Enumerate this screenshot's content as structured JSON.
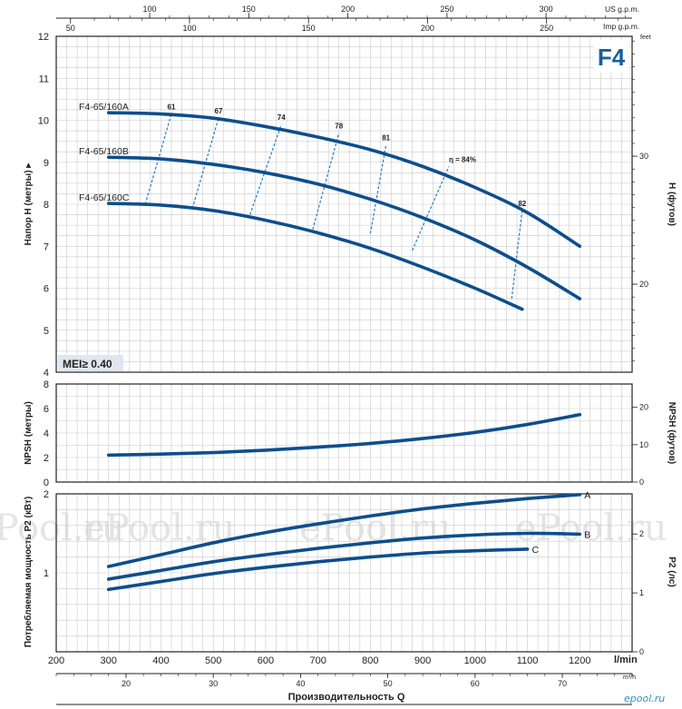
{
  "model_badge": "F4",
  "mei_label": "MEI≥ 0.40",
  "watermark_text": "ePool.ru",
  "corner_logo": "epool.ru",
  "colors": {
    "curve": "#0d4e8c",
    "efficiency": "#1f7fc4",
    "badge": "#1a5d9c",
    "grid": "#c9c9c9"
  },
  "top_axes": {
    "us_label": "US g.p.m.",
    "us_ticks": [
      "100",
      "150",
      "200",
      "250",
      "300"
    ],
    "imp_label": "Imp g.p.m.",
    "imp_ticks": [
      "50",
      "100",
      "150",
      "200",
      "250"
    ]
  },
  "bottom_axes": {
    "lmin_label": "l/min",
    "lmin_ticks": [
      "200",
      "300",
      "400",
      "500",
      "600",
      "700",
      "800",
      "900",
      "1000",
      "1100",
      "1200"
    ],
    "m3h_label": "m³/h",
    "m3h_ticks": [
      "20",
      "30",
      "40",
      "50",
      "60",
      "70"
    ],
    "title": "Производительность Q"
  },
  "chart_data": [
    {
      "type": "line",
      "title": "",
      "xlabel": "l/min",
      "ylabel": "Напор H (метры)",
      "y2label": "H (футов)",
      "xlim": [
        200,
        1300
      ],
      "ylim": [
        4,
        12
      ],
      "y2_ticks": [
        "30",
        "20"
      ],
      "y2_unit": "feet",
      "yticks": [
        "4",
        "5",
        "6",
        "7",
        "8",
        "9",
        "10",
        "11",
        "12"
      ],
      "series": [
        {
          "name": "F4-65/160A",
          "x": [
            300,
            400,
            500,
            600,
            700,
            800,
            900,
            1000,
            1100,
            1200
          ],
          "y": [
            10.18,
            10.15,
            10.05,
            9.85,
            9.6,
            9.3,
            8.9,
            8.4,
            7.8,
            7.0
          ]
        },
        {
          "name": "F4-65/160B",
          "x": [
            300,
            400,
            500,
            600,
            700,
            800,
            900,
            1000,
            1100,
            1200
          ],
          "y": [
            9.12,
            9.08,
            8.95,
            8.75,
            8.48,
            8.12,
            7.68,
            7.15,
            6.5,
            5.75
          ]
        },
        {
          "name": "F4-65/160C",
          "x": [
            300,
            400,
            500,
            600,
            700,
            800,
            900,
            1000,
            1090
          ],
          "y": [
            8.02,
            7.98,
            7.85,
            7.62,
            7.32,
            6.95,
            6.5,
            6.0,
            5.5
          ]
        }
      ],
      "efficiency_labels": [
        "61",
        "67",
        "74",
        "78",
        "81",
        "η = 84%",
        "82"
      ],
      "efficiency_lines": [
        {
          "label": "61",
          "x": [
            370,
            420
          ],
          "y": [
            8.0,
            10.15
          ]
        },
        {
          "label": "67",
          "x": [
            460,
            510
          ],
          "y": [
            7.9,
            10.05
          ]
        },
        {
          "label": "74",
          "x": [
            570,
            630
          ],
          "y": [
            7.75,
            9.9
          ]
        },
        {
          "label": "78",
          "x": [
            690,
            740
          ],
          "y": [
            7.4,
            9.7
          ]
        },
        {
          "label": "81",
          "x": [
            800,
            830
          ],
          "y": [
            7.3,
            9.42
          ]
        },
        {
          "label": "η = 84%",
          "x": [
            880,
            950
          ],
          "y": [
            6.9,
            8.9
          ]
        },
        {
          "label": "82",
          "x": [
            1070,
            1090
          ],
          "y": [
            5.75,
            7.85
          ]
        }
      ]
    },
    {
      "type": "line",
      "title": "",
      "xlabel": "l/min",
      "ylabel": "NPSH (метры)",
      "y2label": "NPSH (футов)",
      "xlim": [
        200,
        1300
      ],
      "ylim": [
        0,
        8
      ],
      "yticks": [
        "0",
        "2",
        "4",
        "6",
        "8"
      ],
      "y2_ticks": [
        "0",
        "10",
        "20"
      ],
      "series": [
        {
          "name": "",
          "x": [
            300,
            400,
            500,
            600,
            700,
            800,
            900,
            1000,
            1100,
            1200
          ],
          "y": [
            2.2,
            2.28,
            2.4,
            2.6,
            2.85,
            3.15,
            3.55,
            4.05,
            4.7,
            5.5
          ]
        }
      ]
    },
    {
      "type": "line",
      "title": "",
      "xlabel": "Производительность Q",
      "ylabel": "Потребляемая мощность P2 (кВт)",
      "y2label": "P2 (лс)",
      "xlim": [
        200,
        1300
      ],
      "ylim": [
        0,
        2
      ],
      "yticks": [
        "1",
        "2"
      ],
      "y2_ticks": [
        "0",
        "1",
        "2"
      ],
      "series": [
        {
          "name": "A",
          "x": [
            300,
            400,
            500,
            600,
            700,
            800,
            900,
            1000,
            1100,
            1200
          ],
          "y": [
            1.08,
            1.23,
            1.38,
            1.51,
            1.62,
            1.72,
            1.81,
            1.88,
            1.94,
            1.99
          ]
        },
        {
          "name": "B",
          "x": [
            300,
            400,
            500,
            600,
            700,
            800,
            900,
            1000,
            1100,
            1200
          ],
          "y": [
            0.92,
            1.03,
            1.14,
            1.23,
            1.31,
            1.38,
            1.44,
            1.48,
            1.5,
            1.49
          ]
        },
        {
          "name": "C",
          "x": [
            300,
            400,
            500,
            600,
            700,
            800,
            900,
            1000,
            1100
          ],
          "y": [
            0.79,
            0.89,
            0.99,
            1.07,
            1.14,
            1.2,
            1.25,
            1.28,
            1.3
          ]
        }
      ]
    }
  ]
}
